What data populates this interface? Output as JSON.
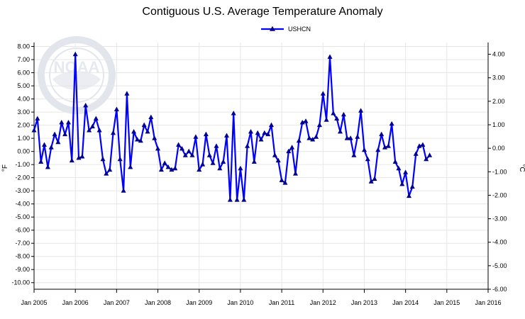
{
  "chart_data": {
    "type": "line",
    "title": "Contiguous U.S. Average Temperature Anomaly",
    "ylabel_left": "°F",
    "ylabel_right": "°C",
    "legend": {
      "placement": "top-center"
    },
    "grid": true,
    "ylim_left": [
      -10.5,
      8.3
    ],
    "ylim_right": [
      -6.0,
      4.5
    ],
    "y_ticks_left": [
      "8.00",
      "7.00",
      "6.00",
      "5.00",
      "4.00",
      "3.00",
      "2.00",
      "1.00",
      "0.00",
      "-1.00",
      "-2.00",
      "-3.00",
      "-4.00",
      "-5.00",
      "-6.00",
      "-7.00",
      "-8.00",
      "-9.00",
      "-10.00"
    ],
    "y_ticks_right": [
      "4.00",
      "3.00",
      "2.00",
      "1.00",
      "0.00",
      "-1.00",
      "-2.00",
      "-3.00",
      "-4.00",
      "-5.00",
      "-6.00"
    ],
    "x_ticks": [
      "Jan 2005",
      "Jan 2006",
      "Jan 2007",
      "Jan 2008",
      "Jan 2009",
      "Jan 2010",
      "Jan 2011",
      "Jan 2012",
      "Jan 2013",
      "Jan 2014",
      "Jan 2015",
      "Jan 2016"
    ],
    "x_range_years": [
      2005,
      2016
    ],
    "series": [
      {
        "name": "USHCN",
        "color": "#0000ff",
        "start": "2005-01",
        "values": [
          1.6,
          2.5,
          -0.8,
          0.5,
          -1.2,
          0.3,
          1.3,
          0.7,
          2.2,
          1.3,
          2.2,
          -0.7,
          7.4,
          -0.5,
          -0.4,
          3.5,
          1.6,
          1.9,
          2.5,
          1.6,
          -0.6,
          -1.7,
          -1.4,
          1.4,
          3.2,
          -0.6,
          -3.0,
          4.4,
          -1.2,
          1.5,
          0.9,
          0.8,
          2.0,
          1.5,
          2.6,
          1.0,
          0.2,
          -1.4,
          -0.9,
          -1.2,
          -1.4,
          -1.3,
          0.5,
          0.2,
          -0.3,
          0.0,
          -0.3,
          1.1,
          -1.4,
          -1.0,
          1.3,
          -0.3,
          -0.9,
          0.4,
          -1.3,
          -0.8,
          1.2,
          -3.7,
          2.9,
          -3.7,
          -1.3,
          -3.7,
          0.4,
          1.5,
          -0.8,
          1.4,
          0.9,
          1.4,
          1.3,
          2.0,
          -0.3,
          -0.7,
          -2.2,
          -2.4,
          0.0,
          0.3,
          -1.7,
          0.8,
          2.2,
          2.3,
          1.0,
          0.9,
          1.1,
          2.0,
          4.4,
          2.4,
          7.2,
          2.9,
          2.5,
          1.5,
          2.8,
          1.0,
          1.0,
          -0.3,
          1.1,
          3.1,
          0.1,
          -0.6,
          -2.3,
          -2.1,
          0.1,
          1.3,
          0.3,
          0.4,
          2.1,
          -0.8,
          -1.3,
          -2.5,
          -1.6,
          -3.4,
          -2.7,
          -0.2,
          0.4,
          0.5,
          -0.6,
          -0.3
        ]
      }
    ]
  }
}
